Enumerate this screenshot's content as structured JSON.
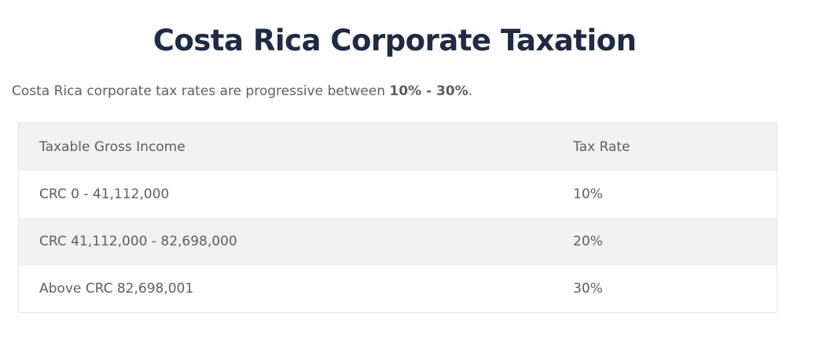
{
  "title": "Costa Rica Corporate Taxation",
  "intro": {
    "text_before": "Costa Rica corporate tax rates are progressive between ",
    "highlight": "10% - 30%",
    "text_after": "."
  },
  "table": {
    "headers": {
      "income": "Taxable Gross Income",
      "rate": "Tax Rate"
    },
    "rows": [
      {
        "income": "CRC 0 - 41,112,000",
        "rate": "10%"
      },
      {
        "income": "CRC 41,112,000 - 82,698,000",
        "rate": "20%"
      },
      {
        "income": "Above CRC 82,698,001",
        "rate": "30%"
      }
    ]
  }
}
